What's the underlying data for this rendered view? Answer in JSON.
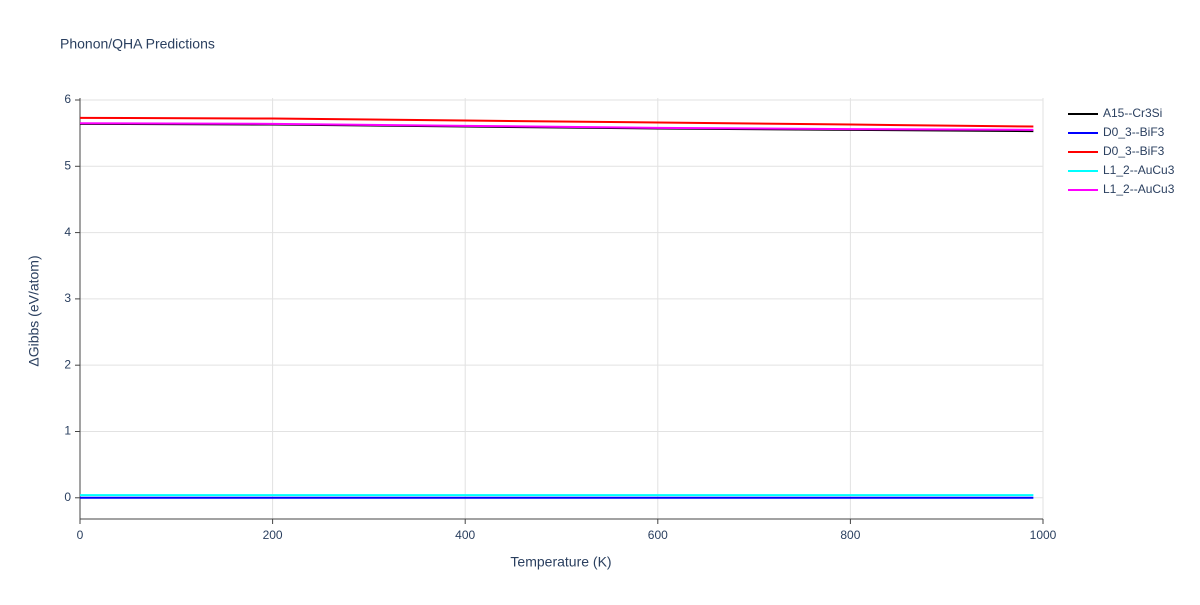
{
  "chart_data": {
    "type": "line",
    "title": "Phonon/QHA Predictions",
    "x_label": "Temperature (K)",
    "y_label": "ΔGibbs (eV/atom)",
    "x": [
      0,
      200,
      400,
      600,
      800,
      990
    ],
    "series": [
      {
        "name": "A15--Cr3Si",
        "color": "#000000",
        "values": [
          5.64,
          5.63,
          5.6,
          5.57,
          5.55,
          5.53
        ]
      },
      {
        "name": "D0_3--BiF3",
        "color": "#0000ff",
        "values": [
          0,
          0,
          0,
          0,
          0,
          0
        ]
      },
      {
        "name": "D0_3--BiF3",
        "color": "#ff0000",
        "values": [
          5.73,
          5.72,
          5.69,
          5.66,
          5.63,
          5.6
        ]
      },
      {
        "name": "L1_2--AuCu3",
        "color": "#00ffff",
        "values": [
          0.04,
          0.04,
          0.04,
          0.04,
          0.04,
          0.04
        ]
      },
      {
        "name": "L1_2--AuCu3",
        "color": "#ff00ff",
        "values": [
          5.65,
          5.64,
          5.61,
          5.58,
          5.56,
          5.55
        ]
      }
    ],
    "xlim": [
      0,
      1000
    ],
    "xticks": [
      0,
      200,
      400,
      600,
      800,
      1000
    ],
    "ylim": [
      -0.32,
      6.03
    ],
    "yticks": [
      0,
      1,
      2,
      3,
      4,
      5,
      6
    ],
    "grid": true,
    "legend": "right"
  }
}
